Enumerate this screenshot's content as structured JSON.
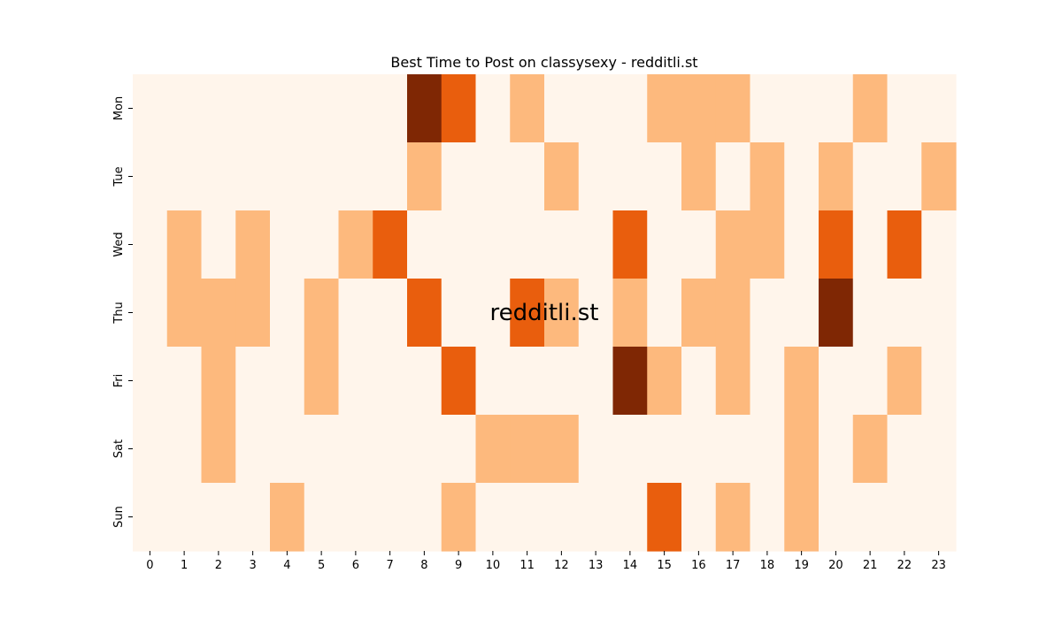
{
  "chart_data": {
    "type": "heatmap",
    "title": "Best Time to Post on classysexy - redditli.st",
    "watermark": "redditli.st",
    "x_categories": [
      "0",
      "1",
      "2",
      "3",
      "4",
      "5",
      "6",
      "7",
      "8",
      "9",
      "10",
      "11",
      "12",
      "13",
      "14",
      "15",
      "16",
      "17",
      "18",
      "19",
      "20",
      "21",
      "22",
      "23"
    ],
    "y_categories": [
      "Mon",
      "Tue",
      "Wed",
      "Thu",
      "Fri",
      "Sat",
      "Sun"
    ],
    "values": [
      [
        0,
        0,
        0,
        0,
        0,
        0,
        0,
        0,
        3,
        2,
        0,
        1,
        0,
        0,
        0,
        1,
        1,
        1,
        0,
        0,
        0,
        1,
        0,
        0
      ],
      [
        0,
        0,
        0,
        0,
        0,
        0,
        0,
        0,
        1,
        0,
        0,
        0,
        1,
        0,
        0,
        0,
        1,
        0,
        1,
        0,
        1,
        0,
        0,
        1
      ],
      [
        0,
        1,
        0,
        1,
        0,
        0,
        1,
        2,
        0,
        0,
        0,
        0,
        0,
        0,
        2,
        0,
        0,
        1,
        1,
        0,
        2,
        0,
        2,
        0
      ],
      [
        0,
        1,
        1,
        1,
        0,
        1,
        0,
        0,
        2,
        0,
        0,
        2,
        1,
        0,
        1,
        0,
        1,
        1,
        0,
        0,
        3,
        0,
        0,
        0
      ],
      [
        0,
        0,
        1,
        0,
        0,
        1,
        0,
        0,
        0,
        2,
        0,
        0,
        0,
        0,
        3,
        1,
        0,
        1,
        0,
        1,
        0,
        0,
        1,
        0
      ],
      [
        0,
        0,
        1,
        0,
        0,
        0,
        0,
        0,
        0,
        0,
        1,
        1,
        1,
        0,
        0,
        0,
        0,
        0,
        0,
        1,
        0,
        1,
        0,
        0
      ],
      [
        0,
        0,
        0,
        0,
        1,
        0,
        0,
        0,
        0,
        1,
        0,
        0,
        0,
        0,
        0,
        2,
        0,
        1,
        0,
        1,
        0,
        0,
        0,
        0
      ]
    ],
    "value_range": [
      0,
      3
    ],
    "colors": [
      "#fff5eb",
      "#fdb97d",
      "#e95e0d",
      "#7f2704"
    ],
    "watermark_color": "#c8b6aa",
    "legend": false,
    "grid": false
  }
}
